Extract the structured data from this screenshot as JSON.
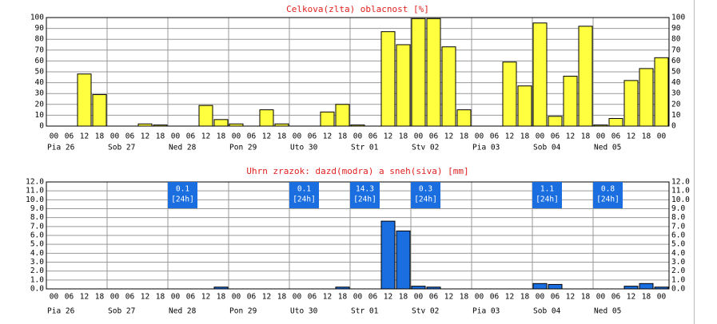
{
  "chart_data": [
    {
      "type": "bar",
      "title": "Celkova(zlta) oblacnost [%]",
      "categories": [
        "00",
        "06",
        "12",
        "18",
        "00",
        "06",
        "12",
        "18",
        "00",
        "06",
        "12",
        "18",
        "00",
        "06",
        "12",
        "18",
        "00",
        "06",
        "12",
        "18",
        "00",
        "06",
        "12",
        "18",
        "00",
        "06",
        "12",
        "18",
        "00",
        "06",
        "12",
        "18",
        "00",
        "06",
        "12",
        "18",
        "00",
        "06",
        "12",
        "18",
        "00"
      ],
      "days": [
        "Pia 26",
        "Sob 27",
        "Ned 28",
        "Pon 29",
        "Uto 30",
        "Str 01",
        "Stv 02",
        "Pia 03",
        "Sob 04",
        "Ned 05"
      ],
      "series": [
        {
          "color": "#ffff40",
          "values": [
            0,
            0,
            48,
            29,
            0,
            0,
            2,
            1,
            0,
            0,
            19,
            6,
            2,
            0,
            15,
            2,
            0,
            0,
            13,
            20,
            1,
            0,
            87,
            75,
            99,
            99,
            73,
            15,
            0,
            0,
            59,
            37,
            95,
            9,
            46,
            92,
            1,
            7,
            42,
            53,
            63
          ]
        }
      ],
      "ylim": [
        0,
        100
      ],
      "yticks": [
        0,
        10,
        20,
        30,
        40,
        50,
        60,
        70,
        80,
        90,
        100
      ],
      "grid": true
    },
    {
      "type": "bar",
      "title": "Uhrn zrazok: dazd(modra) a sneh(siva) [mm]",
      "categories": [
        "00",
        "06",
        "12",
        "18",
        "00",
        "06",
        "12",
        "18",
        "00",
        "06",
        "12",
        "18",
        "00",
        "06",
        "12",
        "18",
        "00",
        "06",
        "12",
        "18",
        "00",
        "06",
        "12",
        "18",
        "00",
        "06",
        "12",
        "18",
        "00",
        "06",
        "12",
        "18",
        "00",
        "06",
        "12",
        "18",
        "00",
        "06",
        "12",
        "18",
        "00"
      ],
      "days": [
        "Pia 26",
        "Sob 27",
        "Ned 28",
        "Pon 29",
        "Uto 30",
        "Str 01",
        "Stv 02",
        "Pia 03",
        "Sob 04",
        "Ned 05"
      ],
      "series": [
        {
          "color": "#1a6ee0",
          "values": [
            0,
            0,
            0,
            0,
            0,
            0,
            0,
            0,
            0,
            0,
            0,
            0.2,
            0,
            0,
            0,
            0,
            0,
            0,
            0,
            0.2,
            0,
            0,
            7.6,
            6.5,
            0.3,
            0.2,
            0,
            0,
            0,
            0,
            0,
            0,
            0.6,
            0.5,
            0,
            0,
            0,
            0,
            0.3,
            0.6,
            0.2
          ]
        }
      ],
      "annotations": [
        {
          "day": "Ned 28",
          "total": 0.1,
          "period": "[24h]"
        },
        {
          "day": "Uto 30",
          "total": 0.1,
          "period": "[24h]"
        },
        {
          "day": "Str 01",
          "total": 14.3,
          "period": "[24h]"
        },
        {
          "day": "Stv 02",
          "total": 0.3,
          "period": "[24h]"
        },
        {
          "day": "Sob 04",
          "total": 1.1,
          "period": "[24h]"
        },
        {
          "day": "Ned 05",
          "total": 0.8,
          "period": "[24h]"
        }
      ],
      "ylim": [
        0,
        12
      ],
      "yticks": [
        {
          "value": 0,
          "label": "0.0"
        },
        {
          "value": 1,
          "label": "1.0"
        },
        {
          "value": 2,
          "label": "2.0"
        },
        {
          "value": 3,
          "label": "3.0"
        },
        {
          "value": 4,
          "label": "4.0"
        },
        {
          "value": 5,
          "label": "5.0"
        },
        {
          "value": 6,
          "label": "6.0"
        },
        {
          "value": 7,
          "label": "7.0"
        },
        {
          "value": 8,
          "label": "8.0"
        },
        {
          "value": 9,
          "label": "9.0"
        },
        {
          "value": 10,
          "label": "10.0"
        },
        {
          "value": 11,
          "label": "11.0"
        },
        {
          "value": 12,
          "label": "12.0"
        }
      ],
      "grid": true
    }
  ]
}
